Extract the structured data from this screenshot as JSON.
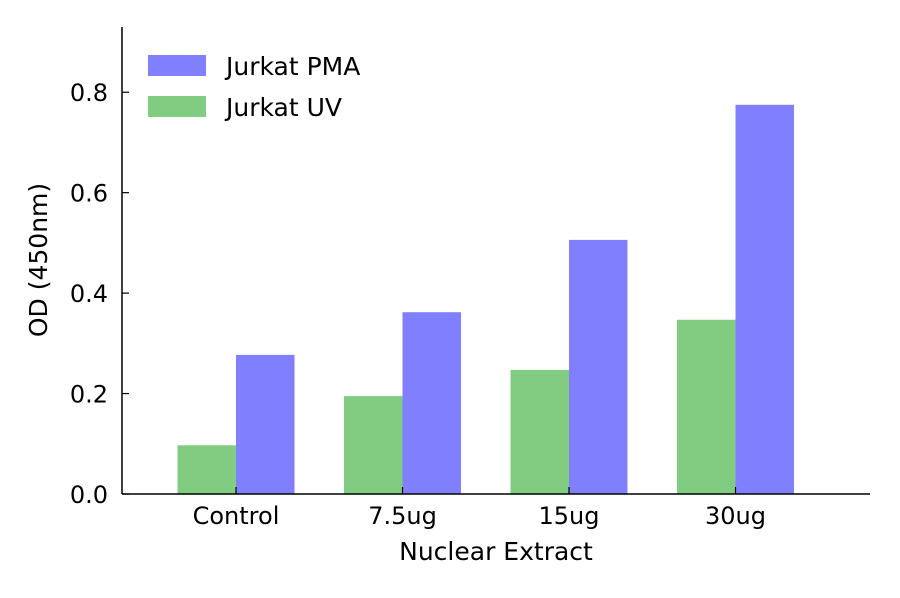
{
  "chart_data": {
    "type": "bar",
    "categories": [
      "Control",
      "7.5ug",
      "15ug",
      "30ug"
    ],
    "series": [
      {
        "name": "Jurkat UV",
        "color": "#80cc80",
        "values": [
          0.097,
          0.195,
          0.247,
          0.347
        ]
      },
      {
        "name": "Jurkat PMA",
        "color": "#8080ff",
        "values": [
          0.277,
          0.362,
          0.506,
          0.775
        ]
      }
    ],
    "xlabel": "Nuclear Extract",
    "ylabel": "OD (450nm)",
    "ylim": [
      0,
      0.9
    ],
    "yticks": [
      "0.0",
      "0.2",
      "0.4",
      "0.6",
      "0.8"
    ],
    "legend": {
      "placement": "top-left",
      "entries": [
        {
          "label": "Jurkat PMA",
          "color": "#8080ff"
        },
        {
          "label": "Jurkat UV",
          "color": "#80cc80"
        }
      ]
    },
    "grid": false
  }
}
